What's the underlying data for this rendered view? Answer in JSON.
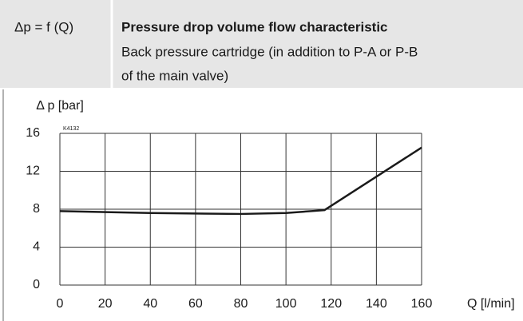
{
  "header": {
    "label": "Δp = f (Q)",
    "title": "Pressure drop volume flow characteristic",
    "subtitle": [
      "Back pressure cartridge (in addition to P-A or P-B",
      "of the main valve)"
    ]
  },
  "chart_data": {
    "type": "line",
    "xlabel": "Q [l/min]",
    "ylabel": "Δ p [bar]",
    "annotation": "K4132",
    "x": [
      0,
      40,
      80,
      100,
      117,
      160
    ],
    "series": [
      {
        "color": "#1a1a1a",
        "values": [
          7.8,
          7.6,
          7.5,
          7.6,
          7.9,
          14.5
        ]
      }
    ],
    "xlim": [
      0,
      160
    ],
    "xticks": [
      0,
      20,
      40,
      60,
      80,
      100,
      120,
      140,
      160
    ],
    "ylim": [
      0,
      16
    ],
    "yticks": [
      0,
      4,
      8,
      12,
      16
    ],
    "grid": true
  }
}
